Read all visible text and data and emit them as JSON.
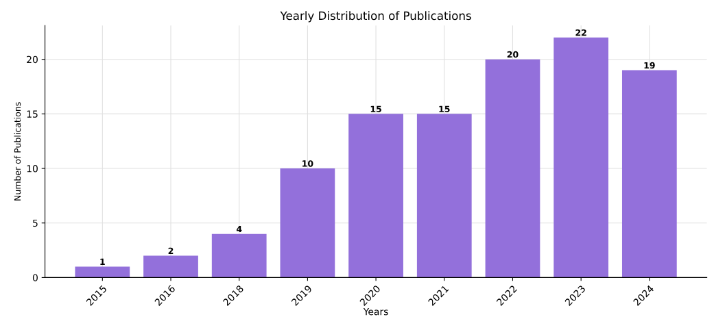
{
  "chart_data": {
    "type": "bar",
    "title": "Yearly Distribution of Publications",
    "xlabel": "Years",
    "ylabel": "Number of Publications",
    "categories": [
      "2015",
      "2016",
      "2018",
      "2019",
      "2020",
      "2021",
      "2022",
      "2023",
      "2024"
    ],
    "values": [
      1,
      2,
      4,
      10,
      15,
      15,
      20,
      22,
      19
    ],
    "color": "#9370db",
    "ylim": [
      0,
      23.1
    ],
    "yticks": [
      0,
      5,
      10,
      15,
      20
    ],
    "grid": true,
    "data_labels": true
  }
}
